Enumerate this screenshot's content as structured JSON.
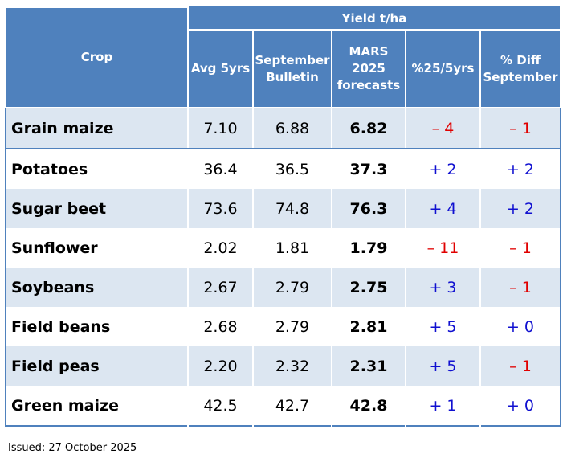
{
  "table": {
    "header": {
      "crop": "Crop",
      "group": "Yield t/ha",
      "columns": [
        "Avg 5yrs",
        "September Bulletin",
        "MARS 2025 forecasts",
        "%25/5yrs",
        "% Diff September"
      ]
    },
    "rows": [
      [
        "Grain maize",
        "7.10",
        "6.88",
        "6.82",
        "– 4",
        "– 1"
      ],
      [
        "Potatoes",
        "36.4",
        "36.5",
        "37.3",
        "+ 2",
        "+ 2"
      ],
      [
        "Sugar beet",
        "73.6",
        "74.8",
        "76.3",
        "+ 4",
        "+ 2"
      ],
      [
        "Sunflower",
        "2.02",
        "1.81",
        "1.79",
        "– 11",
        "– 1"
      ],
      [
        "Soybeans",
        "2.67",
        "2.79",
        "2.75",
        "+ 3",
        "– 1"
      ],
      [
        "Field beans",
        "2.68",
        "2.79",
        "2.81",
        "+ 5",
        "+ 0"
      ],
      [
        "Field peas",
        "2.20",
        "2.32",
        "2.31",
        "+ 5",
        "– 1"
      ],
      [
        "Green maize",
        "42.5",
        "42.7",
        "42.8",
        "+ 1",
        "+ 0"
      ]
    ]
  },
  "footer": "Issued: 27 October 2025"
}
